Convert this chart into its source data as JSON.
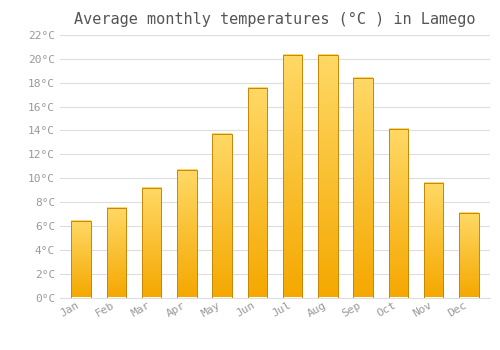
{
  "title": "Average monthly temperatures (°C ) in Lamego",
  "months": [
    "Jan",
    "Feb",
    "Mar",
    "Apr",
    "May",
    "Jun",
    "Jul",
    "Aug",
    "Sep",
    "Oct",
    "Nov",
    "Dec"
  ],
  "values": [
    6.4,
    7.5,
    9.2,
    10.7,
    13.7,
    17.6,
    20.3,
    20.3,
    18.4,
    14.1,
    9.6,
    7.1
  ],
  "bar_color_bottom": "#F5A800",
  "bar_color_top": "#FFD966",
  "bar_edge_color": "#C8860A",
  "ylim": [
    0,
    22
  ],
  "ytick_step": 2,
  "background_color": "#FFFFFF",
  "grid_color": "#DDDDDD",
  "title_fontsize": 11,
  "tick_fontsize": 8,
  "tick_color": "#999999",
  "font_family": "monospace"
}
